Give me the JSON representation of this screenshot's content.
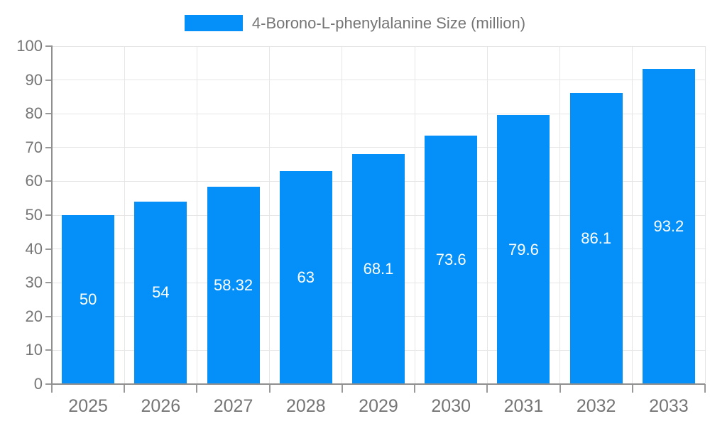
{
  "page": {
    "background": "#FFFFFF"
  },
  "chart_data": {
    "type": "bar",
    "title": "",
    "categories": [
      "2025",
      "2026",
      "2027",
      "2028",
      "2029",
      "2030",
      "2031",
      "2032",
      "2033"
    ],
    "series": [
      {
        "name": "4-Borono-L-phenylalanine Size (million)",
        "values": [
          50,
          54,
          58.32,
          63,
          68.1,
          73.6,
          79.6,
          86.1,
          93.2
        ],
        "value_labels": [
          "50",
          "54",
          "58.32",
          "63",
          "68.1",
          "73.6",
          "79.6",
          "86.1",
          "93.2"
        ]
      }
    ],
    "xlabel": "",
    "ylabel": "",
    "ylim": [
      0,
      100
    ],
    "y_ticks": [
      0,
      10,
      20,
      30,
      40,
      50,
      60,
      70,
      80,
      90,
      100
    ],
    "y_tick_labels": [
      "0",
      "10",
      "20",
      "30",
      "40",
      "50",
      "60",
      "70",
      "80",
      "90",
      "100"
    ],
    "grid": "horizontal-and-vertical",
    "legend_position": "top-center",
    "value_label_position": "center-of-bar",
    "colors": {
      "bar": "#0490F8",
      "grid": "#E6E6E6",
      "axis_line": "#8F8F8F",
      "tick": "#999999",
      "axis_text": "#757575",
      "value_text": "#FFFFFF",
      "legend_text": "#757575"
    }
  }
}
